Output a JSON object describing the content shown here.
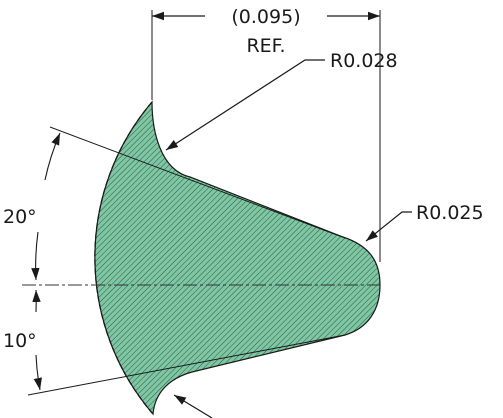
{
  "dimensions": {
    "width_dim": "(0.095)",
    "width_note": "REF.",
    "radius_top": "R0.028",
    "radius_tip": "R0.025",
    "angle_upper": "20°",
    "angle_lower": "10°"
  },
  "colors": {
    "fill": "#7fc7a3",
    "hatch": "#1f4a3a",
    "line": "#1a1a1a"
  }
}
